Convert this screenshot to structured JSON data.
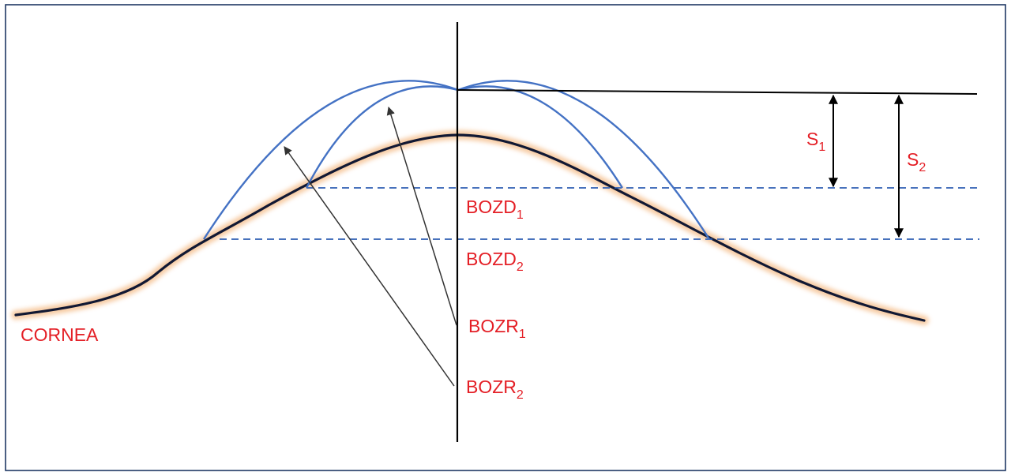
{
  "labels": {
    "cornea": "CORNEA",
    "bozd1": {
      "main": "BOZD",
      "sub": "1"
    },
    "bozd2": {
      "main": "BOZD",
      "sub": "2"
    },
    "bozr1": {
      "main": "BOZR",
      "sub": "1"
    },
    "bozr2": {
      "main": "BOZR",
      "sub": "2"
    },
    "s1": {
      "main": "S",
      "sub": "1"
    },
    "s2": {
      "main": "S",
      "sub": "2"
    }
  },
  "colors": {
    "frame": "#1f3864",
    "cornea_line": "#111833",
    "cornea_glow": "#f6c69a",
    "lens_curve": "#4472c4",
    "dashed_line": "#2f5fb3",
    "label_text": "#e41f26",
    "axis": "#000000"
  }
}
